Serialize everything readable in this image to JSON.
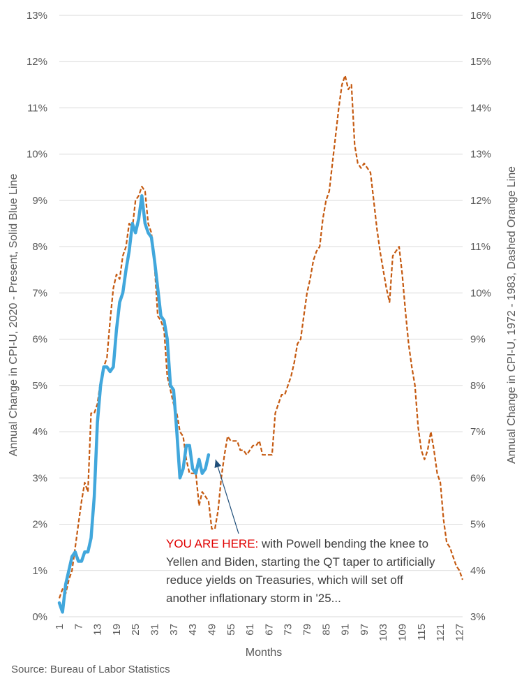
{
  "chart_data": {
    "type": "line",
    "xlabel": "Months",
    "x_ticks": [
      1,
      7,
      13,
      19,
      25,
      31,
      37,
      43,
      49,
      55,
      61,
      67,
      73,
      79,
      85,
      91,
      97,
      103,
      109,
      115,
      121,
      127
    ],
    "x_range": [
      1,
      128
    ],
    "y_left": {
      "label": "Annual Change in CPI-U, 2020 - Present, Solid Blue Line",
      "ylim": [
        0,
        13
      ],
      "ticks": [
        "0%",
        "1%",
        "2%",
        "3%",
        "4%",
        "5%",
        "6%",
        "7%",
        "8%",
        "9%",
        "10%",
        "11%",
        "12%",
        "13%"
      ]
    },
    "y_right": {
      "label": "Annual Change in CPI-U, 1972 - 1983, Dashed Orange Line",
      "ylim": [
        3,
        16
      ],
      "ticks": [
        "3%",
        "4%",
        "5%",
        "6%",
        "7%",
        "8%",
        "9%",
        "10%",
        "11%",
        "12%",
        "13%",
        "14%",
        "15%",
        "16%"
      ]
    },
    "grid": true,
    "series": [
      {
        "style": "solid",
        "axis": "left",
        "color": "#41a7dc",
        "x": [
          1,
          2,
          3,
          4,
          5,
          6,
          7,
          8,
          9,
          10,
          11,
          12,
          13,
          14,
          15,
          16,
          17,
          18,
          19,
          20,
          21,
          22,
          23,
          24,
          25,
          26,
          27,
          28,
          29,
          30,
          31,
          32,
          33,
          34,
          35,
          36,
          37,
          38,
          39,
          40,
          41,
          42,
          43,
          44,
          45,
          46,
          47,
          48
        ],
        "values": [
          0.3,
          0.1,
          0.7,
          1.0,
          1.3,
          1.4,
          1.2,
          1.2,
          1.4,
          1.4,
          1.7,
          2.6,
          4.2,
          5.0,
          5.4,
          5.4,
          5.3,
          5.4,
          6.2,
          6.8,
          7.0,
          7.5,
          7.9,
          8.5,
          8.3,
          8.6,
          9.1,
          8.5,
          8.3,
          8.2,
          7.7,
          7.1,
          6.5,
          6.4,
          6.0,
          5.0,
          4.9,
          4.0,
          3.0,
          3.2,
          3.7,
          3.7,
          3.2,
          3.1,
          3.4,
          3.1,
          3.2,
          3.5
        ]
      },
      {
        "style": "dashed",
        "axis": "right",
        "color": "#c55a11",
        "x": [
          1,
          2,
          3,
          4,
          5,
          6,
          7,
          8,
          9,
          10,
          11,
          12,
          13,
          14,
          15,
          16,
          17,
          18,
          19,
          20,
          21,
          22,
          23,
          24,
          25,
          26,
          27,
          28,
          29,
          30,
          31,
          32,
          33,
          34,
          35,
          36,
          37,
          38,
          39,
          40,
          41,
          42,
          43,
          44,
          45,
          46,
          47,
          48,
          49,
          50,
          51,
          52,
          53,
          54,
          55,
          56,
          57,
          58,
          59,
          60,
          61,
          62,
          63,
          64,
          65,
          66,
          67,
          68,
          69,
          70,
          71,
          72,
          73,
          74,
          75,
          76,
          77,
          78,
          79,
          80,
          81,
          82,
          83,
          84,
          85,
          86,
          87,
          88,
          89,
          90,
          91,
          92,
          93,
          94,
          95,
          96,
          97,
          98,
          99,
          100,
          101,
          102,
          103,
          104,
          105,
          106,
          107,
          108,
          109,
          110,
          111,
          112,
          113,
          114,
          115,
          116,
          117,
          118,
          119,
          120,
          121,
          122,
          123,
          124,
          125,
          126,
          127,
          128
        ],
        "values": [
          3.4,
          3.6,
          3.5,
          3.8,
          4.0,
          4.5,
          5.0,
          5.5,
          5.9,
          5.7,
          7.4,
          7.4,
          7.6,
          8.1,
          8.4,
          8.6,
          9.4,
          10.1,
          10.4,
          10.3,
          10.8,
          11.0,
          11.5,
          11.4,
          12.0,
          12.1,
          12.3,
          12.2,
          11.5,
          11.3,
          10.6,
          9.5,
          9.4,
          9.2,
          8.2,
          7.9,
          7.6,
          7.4,
          7.0,
          6.9,
          6.4,
          6.1,
          6.1,
          6.1,
          5.4,
          5.7,
          5.6,
          5.5,
          4.9,
          4.9,
          5.3,
          6.0,
          6.5,
          6.9,
          6.8,
          6.8,
          6.8,
          6.6,
          6.6,
          6.5,
          6.6,
          6.7,
          6.7,
          6.8,
          6.5,
          6.5,
          6.5,
          6.5,
          7.4,
          7.6,
          7.8,
          7.8,
          8.0,
          8.2,
          8.5,
          8.9,
          9.0,
          9.5,
          10.0,
          10.3,
          10.7,
          10.9,
          11.0,
          11.6,
          12.0,
          12.2,
          12.8,
          13.4,
          14.0,
          14.5,
          14.7,
          14.4,
          14.5,
          13.2,
          12.8,
          12.7,
          12.8,
          12.7,
          12.6,
          12.0,
          11.4,
          10.9,
          10.5,
          10.1,
          9.8,
          10.8,
          10.9,
          11.0,
          10.4,
          9.6,
          8.9,
          8.4,
          8.0,
          7.1,
          6.6,
          6.4,
          6.6,
          7.0,
          6.6,
          6.1,
          5.9,
          5.1,
          4.6,
          4.5,
          4.3,
          4.1,
          4.0,
          3.8
        ]
      }
    ],
    "source": "Source: Bureau of Labor Statistics"
  },
  "annotation": {
    "highlight": "YOU ARE HERE:",
    "text": " with Powell bending the knee to Yellen and Biden, starting the QT taper to artificially reduce yields on Treasuries, which will set off another inflationary storm in '25..."
  }
}
